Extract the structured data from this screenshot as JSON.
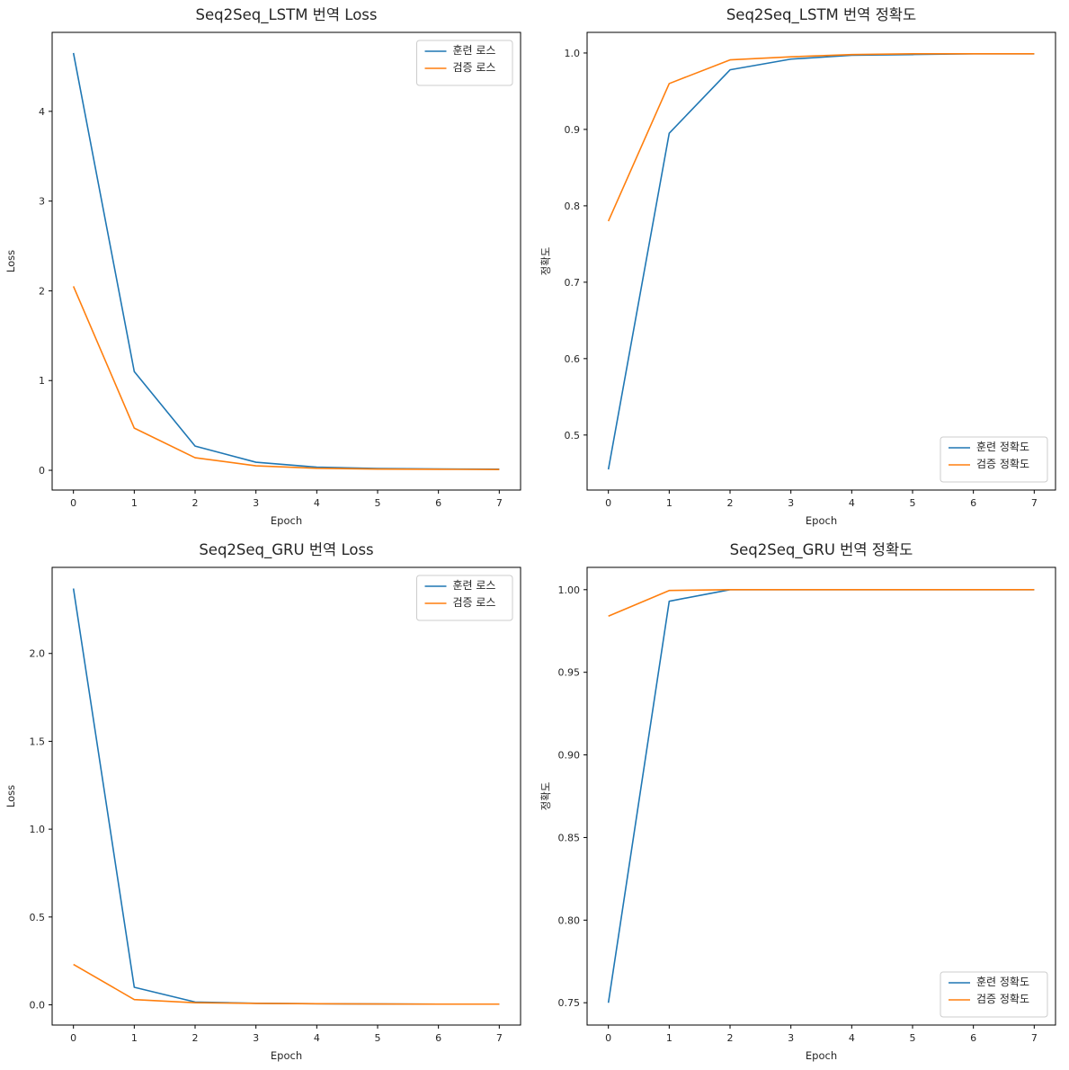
{
  "figure": {
    "background": "#ffffff",
    "layout": "2x2-grid",
    "grid": false
  },
  "colors": {
    "train_line": "#1f77b4",
    "val_line": "#ff7f0e",
    "axis": "#000000",
    "legend_border": "#cccccc",
    "legend_bg": "#ffffff"
  },
  "chart_data": [
    {
      "type": "line",
      "title": "Seq2Seq_LSTM 번역 Loss",
      "xlabel": "Epoch",
      "ylabel": "Loss",
      "x": [
        0,
        1,
        2,
        3,
        4,
        5,
        6,
        7
      ],
      "xlim": [
        -0.35,
        7.35
      ],
      "ylim": [
        -0.22,
        4.88
      ],
      "xticks": [
        0,
        1,
        2,
        3,
        4,
        5,
        6,
        7
      ],
      "xtick_labels": [
        "0",
        "1",
        "2",
        "3",
        "4",
        "5",
        "6",
        "7"
      ],
      "yticks": [
        0,
        1,
        2,
        3,
        4
      ],
      "ytick_labels": [
        "0",
        "1",
        "2",
        "3",
        "4"
      ],
      "legend_position": "top-right",
      "series": [
        {
          "name": "훈련 로스",
          "color": "#1f77b4",
          "values": [
            4.65,
            1.1,
            0.27,
            0.09,
            0.035,
            0.02,
            0.015,
            0.012
          ]
        },
        {
          "name": "검증 로스",
          "color": "#ff7f0e",
          "values": [
            2.05,
            0.47,
            0.14,
            0.05,
            0.022,
            0.014,
            0.011,
            0.009
          ]
        }
      ]
    },
    {
      "type": "line",
      "title": "Seq2Seq_LSTM 번역 정확도",
      "xlabel": "Epoch",
      "ylabel": "정확도",
      "x": [
        0,
        1,
        2,
        3,
        4,
        5,
        6,
        7
      ],
      "xlim": [
        -0.35,
        7.35
      ],
      "ylim": [
        0.428,
        1.027
      ],
      "xticks": [
        0,
        1,
        2,
        3,
        4,
        5,
        6,
        7
      ],
      "xtick_labels": [
        "0",
        "1",
        "2",
        "3",
        "4",
        "5",
        "6",
        "7"
      ],
      "yticks": [
        0.5,
        0.6,
        0.7,
        0.8,
        0.9,
        1.0
      ],
      "ytick_labels": [
        "0.5",
        "0.6",
        "0.7",
        "0.8",
        "0.9",
        "1.0"
      ],
      "legend_position": "bottom-right",
      "series": [
        {
          "name": "훈련 정확도",
          "color": "#1f77b4",
          "values": [
            0.455,
            0.895,
            0.978,
            0.992,
            0.997,
            0.998,
            0.999,
            0.999
          ]
        },
        {
          "name": "검증 정확도",
          "color": "#ff7f0e",
          "values": [
            0.78,
            0.96,
            0.991,
            0.995,
            0.998,
            0.999,
            0.999,
            0.999
          ]
        }
      ]
    },
    {
      "type": "line",
      "title": "Seq2Seq_GRU 번역 Loss",
      "xlabel": "Epoch",
      "ylabel": "Loss",
      "x": [
        0,
        1,
        2,
        3,
        4,
        5,
        6,
        7
      ],
      "xlim": [
        -0.35,
        7.35
      ],
      "ylim": [
        -0.115,
        2.49
      ],
      "xticks": [
        0,
        1,
        2,
        3,
        4,
        5,
        6,
        7
      ],
      "xtick_labels": [
        "0",
        "1",
        "2",
        "3",
        "4",
        "5",
        "6",
        "7"
      ],
      "yticks": [
        0.0,
        0.5,
        1.0,
        1.5,
        2.0
      ],
      "ytick_labels": [
        "0.0",
        "0.5",
        "1.0",
        "1.5",
        "2.0"
      ],
      "legend_position": "top-right",
      "series": [
        {
          "name": "훈련 로스",
          "color": "#1f77b4",
          "values": [
            2.37,
            0.1,
            0.016,
            0.009,
            0.006,
            0.005,
            0.004,
            0.004
          ]
        },
        {
          "name": "검증 로스",
          "color": "#ff7f0e",
          "values": [
            0.23,
            0.03,
            0.012,
            0.008,
            0.006,
            0.005,
            0.004,
            0.004
          ]
        }
      ]
    },
    {
      "type": "line",
      "title": "Seq2Seq_GRU 번역 정확도",
      "xlabel": "Epoch",
      "ylabel": "정확도",
      "x": [
        0,
        1,
        2,
        3,
        4,
        5,
        6,
        7
      ],
      "xlim": [
        -0.35,
        7.35
      ],
      "ylim": [
        0.7365,
        1.0135
      ],
      "xticks": [
        0,
        1,
        2,
        3,
        4,
        5,
        6,
        7
      ],
      "xtick_labels": [
        "0",
        "1",
        "2",
        "3",
        "4",
        "5",
        "6",
        "7"
      ],
      "yticks": [
        0.75,
        0.8,
        0.85,
        0.9,
        0.95,
        1.0
      ],
      "ytick_labels": [
        "0.75",
        "0.80",
        "0.85",
        "0.90",
        "0.95",
        "1.00"
      ],
      "legend_position": "bottom-right",
      "series": [
        {
          "name": "훈련 정확도",
          "color": "#1f77b4",
          "values": [
            0.75,
            0.993,
            1.0,
            1.0,
            1.0,
            1.0,
            1.0,
            1.0
          ]
        },
        {
          "name": "검증 정확도",
          "color": "#ff7f0e",
          "values": [
            0.984,
            0.9995,
            1.0,
            1.0,
            1.0,
            1.0,
            1.0,
            1.0
          ]
        }
      ]
    }
  ]
}
